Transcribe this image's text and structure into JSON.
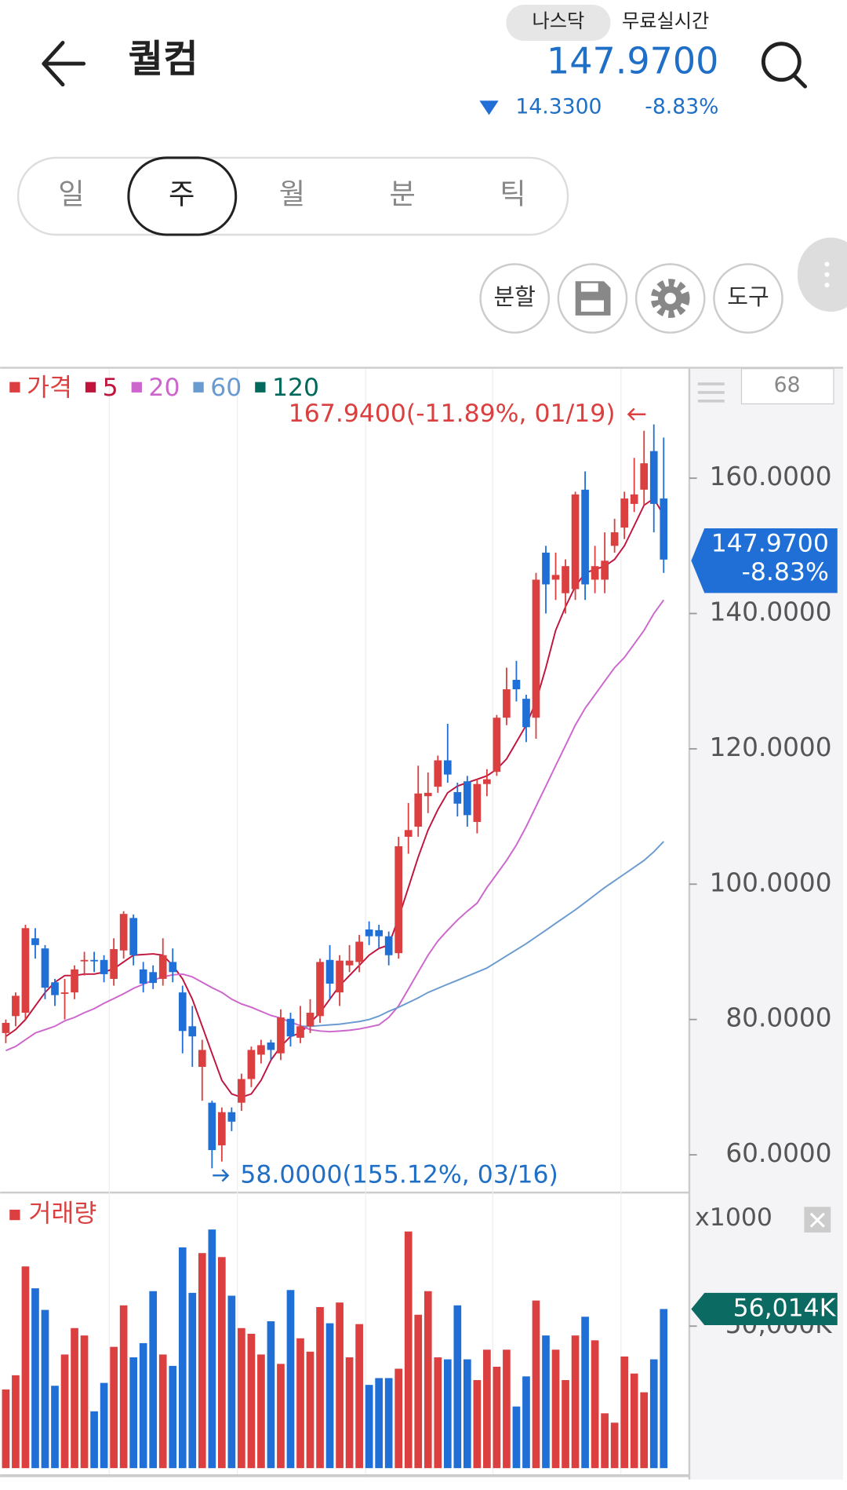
{
  "header": {
    "title": "퀄컴",
    "market": "나스닥",
    "feed": "무료실시간",
    "price": "147.9700",
    "change": "14.3300",
    "change_pct": "-8.83%"
  },
  "tabs": [
    "일",
    "주",
    "월",
    "분",
    "틱"
  ],
  "selected_tab": 1,
  "tools": {
    "split": "분할",
    "tool": "도구"
  },
  "count_box": "68",
  "chart_data": [
    {
      "type": "candlestick",
      "name": "가격",
      "up_color": "#dc3f3f",
      "down_color": "#1f6fd6",
      "ylim": [
        54.7,
        175.9
      ],
      "yticks": [
        {
          "value": 60,
          "label": "60.0000"
        },
        {
          "value": 80,
          "label": "80.0000"
        },
        {
          "value": 100,
          "label": "100.0000"
        },
        {
          "value": 120,
          "label": "120.0000"
        },
        {
          "value": 140,
          "label": "140.0000"
        },
        {
          "value": 160,
          "label": "160.0000"
        }
      ],
      "candles": [
        {
          "open": 78,
          "high": 80,
          "low": 76.5,
          "close": 79.5
        },
        {
          "open": 80.5,
          "high": 84,
          "low": 79,
          "close": 83.5
        },
        {
          "open": 81,
          "high": 94,
          "low": 80,
          "close": 93.5
        },
        {
          "open": 92,
          "high": 93.5,
          "low": 89,
          "close": 91
        },
        {
          "open": 90.5,
          "high": 91,
          "low": 83,
          "close": 84.7
        },
        {
          "open": 85.5,
          "high": 86,
          "low": 82,
          "close": 83.6
        },
        {
          "open": 83.8,
          "high": 86,
          "low": 80,
          "close": 84
        },
        {
          "open": 84,
          "high": 88,
          "low": 83,
          "close": 87.4
        },
        {
          "open": 88.6,
          "high": 90,
          "low": 86.5,
          "close": 88.8
        },
        {
          "open": 88.8,
          "high": 90,
          "low": 87,
          "close": 88.6
        },
        {
          "open": 88.8,
          "high": 89.5,
          "low": 85.5,
          "close": 86.7
        },
        {
          "open": 86,
          "high": 92,
          "low": 85,
          "close": 90.4
        },
        {
          "open": 90.2,
          "high": 96,
          "low": 89,
          "close": 95.6
        },
        {
          "open": 95,
          "high": 95.5,
          "low": 88,
          "close": 89.5
        },
        {
          "open": 87.4,
          "high": 88.5,
          "low": 84,
          "close": 85.3
        },
        {
          "open": 87,
          "high": 88,
          "low": 84.5,
          "close": 85.4
        },
        {
          "open": 86,
          "high": 92,
          "low": 85,
          "close": 89.5
        },
        {
          "open": 88.5,
          "high": 90.5,
          "low": 85.5,
          "close": 87
        },
        {
          "open": 84,
          "high": 85,
          "low": 75,
          "close": 78.3
        },
        {
          "open": 79,
          "high": 82,
          "low": 73,
          "close": 77.5
        },
        {
          "open": 73,
          "high": 77,
          "low": 68,
          "close": 75.5
        },
        {
          "open": 67.7,
          "high": 68,
          "low": 58,
          "close": 60.7
        },
        {
          "open": 61.4,
          "high": 67,
          "low": 59,
          "close": 66.3
        },
        {
          "open": 66.3,
          "high": 67,
          "low": 63.5,
          "close": 64.9
        },
        {
          "open": 67.7,
          "high": 72,
          "low": 66.5,
          "close": 71.2
        },
        {
          "open": 71.2,
          "high": 76,
          "low": 70,
          "close": 75.5
        },
        {
          "open": 74.8,
          "high": 77,
          "low": 73.5,
          "close": 76.2
        },
        {
          "open": 76.6,
          "high": 77,
          "low": 74,
          "close": 75.5
        },
        {
          "open": 75,
          "high": 81.5,
          "low": 74,
          "close": 80.3
        },
        {
          "open": 80.1,
          "high": 81,
          "low": 76,
          "close": 77.5
        },
        {
          "open": 77.3,
          "high": 82,
          "low": 76.5,
          "close": 79
        },
        {
          "open": 79,
          "high": 83,
          "low": 78,
          "close": 81
        },
        {
          "open": 80.5,
          "high": 89,
          "low": 79.5,
          "close": 88.5
        },
        {
          "open": 88.8,
          "high": 91,
          "low": 83,
          "close": 85.3
        },
        {
          "open": 84,
          "high": 89.5,
          "low": 82,
          "close": 88.7
        },
        {
          "open": 88,
          "high": 91,
          "low": 87,
          "close": 88.7
        },
        {
          "open": 88.5,
          "high": 92.5,
          "low": 87,
          "close": 91.5
        },
        {
          "open": 93.3,
          "high": 94.5,
          "low": 91,
          "close": 92.3
        },
        {
          "open": 93.2,
          "high": 94,
          "low": 90.5,
          "close": 92.3
        },
        {
          "open": 92.3,
          "high": 93,
          "low": 88,
          "close": 89.5
        },
        {
          "open": 89.8,
          "high": 107,
          "low": 89,
          "close": 105.6
        },
        {
          "open": 107,
          "high": 112,
          "low": 104.5,
          "close": 108
        },
        {
          "open": 108.5,
          "high": 117.5,
          "low": 107,
          "close": 113.4
        },
        {
          "open": 113,
          "high": 116.5,
          "low": 110.5,
          "close": 113.5
        },
        {
          "open": 114.4,
          "high": 119,
          "low": 113.5,
          "close": 118.3
        },
        {
          "open": 118.3,
          "high": 123.7,
          "low": 115,
          "close": 116.2
        },
        {
          "open": 113.6,
          "high": 115,
          "low": 110,
          "close": 111.9
        },
        {
          "open": 115.2,
          "high": 116,
          "low": 108.5,
          "close": 110.2
        },
        {
          "open": 109.2,
          "high": 115.5,
          "low": 107.5,
          "close": 114.8
        },
        {
          "open": 114.8,
          "high": 117,
          "low": 113,
          "close": 115.5
        },
        {
          "open": 116.6,
          "high": 125,
          "low": 116,
          "close": 124.6
        },
        {
          "open": 124.6,
          "high": 132,
          "low": 123.5,
          "close": 128.8
        },
        {
          "open": 130.2,
          "high": 133,
          "low": 127,
          "close": 128.8
        },
        {
          "open": 127.4,
          "high": 128,
          "low": 121,
          "close": 123.2
        },
        {
          "open": 124.6,
          "high": 146,
          "low": 121.5,
          "close": 145
        },
        {
          "open": 149,
          "high": 150,
          "low": 140,
          "close": 144.3
        },
        {
          "open": 145,
          "high": 149,
          "low": 142,
          "close": 145.7
        },
        {
          "open": 143,
          "high": 148,
          "low": 140,
          "close": 147
        },
        {
          "open": 143.6,
          "high": 158,
          "low": 142,
          "close": 157.6
        },
        {
          "open": 158.3,
          "high": 161,
          "low": 142,
          "close": 144.3
        },
        {
          "open": 145,
          "high": 150,
          "low": 143,
          "close": 147
        },
        {
          "open": 145,
          "high": 152,
          "low": 143,
          "close": 147.8
        },
        {
          "open": 150,
          "high": 154,
          "low": 149,
          "close": 152
        },
        {
          "open": 152.7,
          "high": 158,
          "low": 151,
          "close": 157
        },
        {
          "open": 156.2,
          "high": 163,
          "low": 155,
          "close": 157.6
        },
        {
          "open": 158.3,
          "high": 167,
          "low": 156,
          "close": 162.2
        },
        {
          "open": 164,
          "high": 167.94,
          "low": 152,
          "close": 156.2
        },
        {
          "open": 157,
          "high": 166,
          "low": 146,
          "close": 147.97
        }
      ],
      "series": [
        {
          "name": "5",
          "color": "#c0143c",
          "values": [
            77.5,
            78.5,
            80,
            82,
            84,
            85.5,
            86.5,
            86.5,
            86.7,
            86.7,
            87,
            87.5,
            88.5,
            89.5,
            89.6,
            89.7,
            89.5,
            88,
            86,
            83,
            79,
            75,
            71,
            69,
            68.5,
            69,
            71,
            74,
            76,
            77.5,
            78,
            79.5,
            81,
            83,
            85,
            86.5,
            88,
            89.5,
            90.5,
            91,
            95,
            99.5,
            104,
            108,
            111,
            113.5,
            114.5,
            115,
            115.5,
            116,
            117,
            118.5,
            121,
            123.5,
            127,
            132,
            137.5,
            141,
            144,
            146,
            146.5,
            147,
            148,
            150,
            153,
            156,
            157,
            154.5
          ]
        },
        {
          "name": "20",
          "color": "#cc66cc",
          "values": [
            75.4,
            76,
            77,
            78,
            78.5,
            79,
            79.8,
            80.3,
            81,
            81.6,
            82.4,
            83.1,
            83.8,
            84.6,
            85.2,
            85.8,
            86.3,
            86.6,
            86.7,
            86.3,
            85.5,
            84.7,
            84,
            83,
            82.3,
            81.8,
            81.2,
            80.6,
            80.2,
            79.6,
            79.1,
            78.5,
            78.3,
            78.2,
            78.3,
            78.4,
            78.6,
            78.9,
            79.2,
            80.3,
            82,
            84.5,
            87,
            89.5,
            91.6,
            93.2,
            94.7,
            96,
            97.2,
            99.5,
            101.5,
            103.5,
            105.8,
            108.5,
            111.5,
            114.5,
            117.5,
            120.5,
            123.5,
            126,
            128,
            130,
            132,
            133.5,
            135.5,
            137.5,
            140,
            142
          ]
        },
        {
          "name": "60",
          "color": "#6a9bd0",
          "values": [
            null,
            null,
            null,
            null,
            null,
            null,
            null,
            null,
            null,
            null,
            null,
            null,
            null,
            null,
            null,
            null,
            null,
            null,
            null,
            null,
            null,
            null,
            null,
            null,
            null,
            null,
            null,
            null,
            null,
            null,
            79,
            79,
            79.1,
            79.2,
            79.3,
            79.5,
            79.7,
            80,
            80.5,
            81.2,
            81.8,
            82.5,
            83.2,
            84,
            84.6,
            85.2,
            85.8,
            86.4,
            87,
            87.6,
            88.5,
            89.4,
            90.3,
            91.2,
            92.2,
            93.2,
            94.2,
            95.2,
            96.2,
            97.3,
            98.4,
            99.5,
            100.5,
            101.5,
            102.5,
            103.5,
            104.8,
            106.3
          ]
        },
        {
          "name": "120",
          "color": "#00695c"
        }
      ],
      "annotations": {
        "high": "167.9400(-11.89%, 01/19)",
        "low": "58.0000(155.12%, 03/16)"
      },
      "last_badge": {
        "price": "147.9700",
        "change": "-8.83%",
        "color": "#1f6fd6"
      }
    },
    {
      "type": "bar",
      "title": "거래량",
      "unit_label": "x1000",
      "ylim": [
        0,
        96000
      ],
      "yticks": [
        {
          "value": 50000,
          "label": "50,000K"
        }
      ],
      "values": [
        27700,
        32700,
        71000,
        63300,
        55700,
        29000,
        40000,
        49300,
        46700,
        20000,
        30000,
        42700,
        57300,
        39000,
        44000,
        62300,
        40000,
        36000,
        77700,
        61700,
        75700,
        84000,
        74300,
        60700,
        49300,
        47300,
        40000,
        51700,
        36700,
        62700,
        45700,
        41000,
        56700,
        51000,
        58300,
        39000,
        50700,
        29300,
        31700,
        31700,
        35000,
        83300,
        54000,
        62300,
        39000,
        38300,
        57300,
        38300,
        31000,
        41700,
        35700,
        41700,
        21700,
        32300,
        59000,
        46700,
        41700,
        31000,
        46700,
        53300,
        45000,
        19300,
        16000,
        39300,
        33300,
        26700,
        38300,
        56014
      ],
      "last_value_label": "56,014K",
      "badge_color": "#0b6b62"
    }
  ]
}
